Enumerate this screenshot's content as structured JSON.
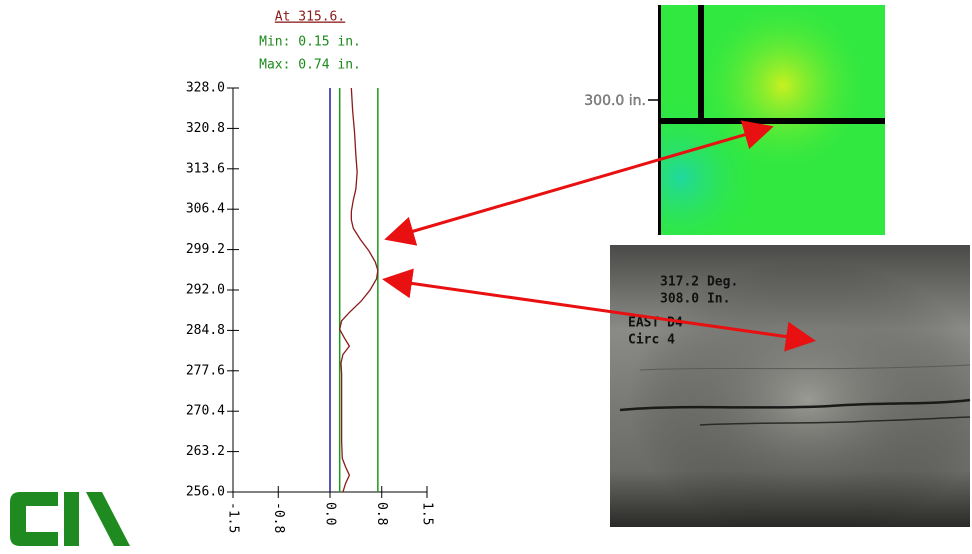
{
  "chart_data": {
    "type": "line",
    "orientation": "vertical",
    "title": "At 315.6.",
    "subtitle": [
      "Min: 0.15 in.",
      "Max: 0.74 in."
    ],
    "x": [
      256,
      257.5,
      259,
      260.5,
      262,
      265,
      268,
      271,
      274,
      277,
      279,
      280.5,
      282,
      283.5,
      285,
      286.5,
      288,
      290,
      292,
      294,
      295.5,
      297,
      299,
      301,
      303,
      304.5,
      306,
      308,
      310,
      313,
      316,
      320,
      324,
      328
    ],
    "series": [
      {
        "color": "#8b1a1a",
        "values": [
          0.2,
          0.24,
          0.3,
          0.24,
          0.19,
          0.18,
          0.18,
          0.18,
          0.18,
          0.18,
          0.17,
          0.2,
          0.3,
          0.22,
          0.15,
          0.18,
          0.3,
          0.48,
          0.62,
          0.72,
          0.74,
          0.7,
          0.6,
          0.47,
          0.36,
          0.33,
          0.33,
          0.36,
          0.4,
          0.42,
          0.4,
          0.38,
          0.35,
          0.33
        ]
      }
    ],
    "reference_lines": [
      {
        "value": 0,
        "color": "#1f1fa0"
      },
      {
        "value": 0.15,
        "color": "#1a9a1a"
      },
      {
        "value": 0.74,
        "color": "#1a9a1a"
      }
    ],
    "ylim": [
      256,
      328
    ],
    "yticks": [
      {
        "value": 256,
        "label": "256.0"
      },
      263.2,
      270.4,
      277.6,
      284.8,
      {
        "value": 292,
        "label": "292.0"
      },
      299.2,
      306.4,
      313.6,
      320.8,
      {
        "value": 328,
        "label": "328.0"
      }
    ],
    "xlim": [
      -1.5,
      1.5
    ],
    "xticks": [
      -1.5,
      -0.8,
      {
        "value": 0,
        "label": "0.0"
      },
      0.8,
      1.5
    ]
  },
  "scan_image": {
    "label": "300.0 in."
  },
  "camera_image": {
    "overlay": [
      "317.2 Deg.",
      "308.0 In.",
      "EAST D4",
      "Circ 4"
    ]
  }
}
